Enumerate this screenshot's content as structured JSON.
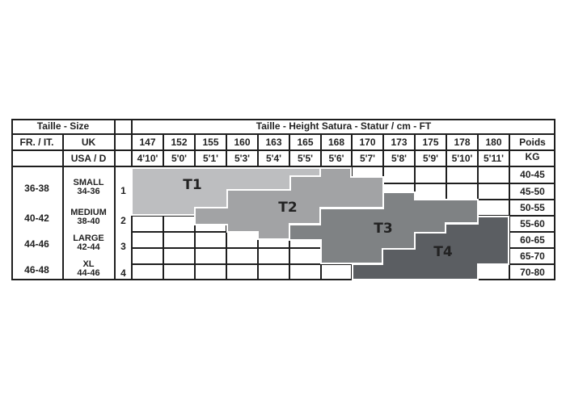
{
  "chart_data": {
    "type": "table",
    "header": {
      "size_title": "Taille - Size",
      "height_title": "Taille - Height Satura - Statur / cm - FT",
      "fr_it": "FR. / IT.",
      "uk": "UK",
      "usa_d": "USA / D",
      "weight_title_1": "Poids",
      "weight_title_2": "KG"
    },
    "heights_cm": [
      "147",
      "152",
      "155",
      "160",
      "163",
      "165",
      "168",
      "170",
      "173",
      "175",
      "178",
      "180"
    ],
    "heights_ft": [
      "4'10'",
      "5'0'",
      "5'1'",
      "5'3'",
      "5'4'",
      "5'5'",
      "5'6'",
      "5'7'",
      "5'8'",
      "5'9'",
      "5'10'",
      "5'11'"
    ],
    "weights_kg": [
      "40-45",
      "45-50",
      "50-55",
      "55-60",
      "60-65",
      "65-70",
      "70-80"
    ],
    "sizes": [
      {
        "fr_it": "36-38",
        "uk_name": "SMALL",
        "uk_range": "34-36",
        "num": "1"
      },
      {
        "fr_it": "40-42",
        "uk_name": "MEDIUM",
        "uk_range": "38-40",
        "num": "2"
      },
      {
        "fr_it": "44-46",
        "uk_name": "LARGE",
        "uk_range": "42-44",
        "num": "3"
      },
      {
        "fr_it": "46-48",
        "uk_name": "XL",
        "uk_range": "44-46",
        "num": "4"
      }
    ],
    "zones": [
      {
        "label": "T1",
        "color": "#bdbec0"
      },
      {
        "label": "T2",
        "color": "#a2a3a5"
      },
      {
        "label": "T3",
        "color": "#7f8284"
      },
      {
        "label": "T4",
        "color": "#5b5e62"
      }
    ]
  }
}
